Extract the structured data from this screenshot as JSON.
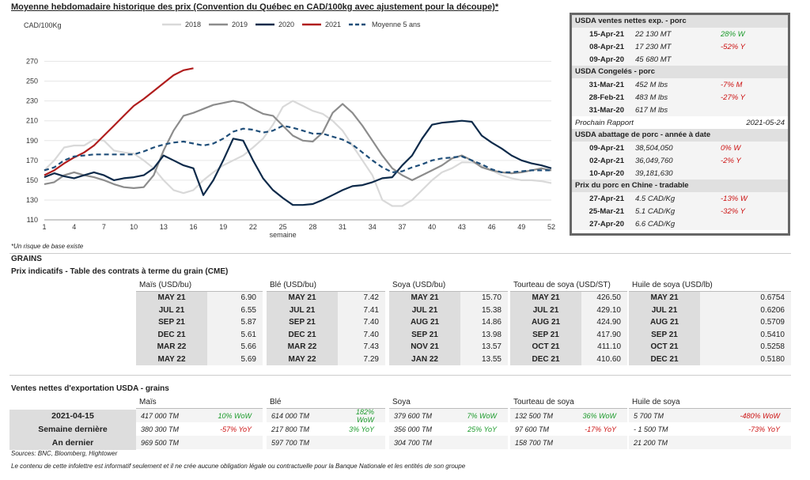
{
  "chart_data": {
    "type": "line",
    "title": "Moyenne hebdomadaire historique des prix (Convention du Québec en CAD/100kg avec ajustement pour la découpe)*",
    "ylabel": "CAD/100Kg",
    "xlabel": "semaine",
    "ylim": [
      110,
      280
    ],
    "yticks": [
      110,
      130,
      150,
      170,
      190,
      210,
      230,
      250,
      270
    ],
    "xticks": [
      1,
      4,
      7,
      10,
      13,
      16,
      19,
      22,
      25,
      28,
      31,
      34,
      37,
      40,
      43,
      46,
      49,
      52
    ],
    "xlim": [
      1,
      52
    ],
    "series": [
      {
        "name": "2018",
        "color": "#d9d9d9",
        "dash": "",
        "x": [
          1,
          2,
          3,
          4,
          5,
          6,
          7,
          8,
          9,
          10,
          11,
          12,
          13,
          14,
          15,
          16,
          17,
          18,
          19,
          20,
          21,
          22,
          23,
          24,
          25,
          26,
          27,
          28,
          29,
          30,
          31,
          32,
          33,
          34,
          35,
          36,
          37,
          38,
          39,
          40,
          41,
          42,
          43,
          44,
          45,
          46,
          47,
          48,
          49,
          50,
          51,
          52
        ],
        "values": [
          160,
          170,
          183,
          185,
          185,
          191,
          190,
          180,
          178,
          177,
          170,
          162,
          150,
          140,
          137,
          140,
          150,
          158,
          165,
          170,
          175,
          183,
          192,
          206,
          224,
          230,
          225,
          220,
          217,
          210,
          200,
          185,
          170,
          155,
          130,
          124,
          124,
          130,
          140,
          150,
          158,
          162,
          168,
          168,
          165,
          160,
          155,
          152,
          150,
          150,
          149,
          147
        ]
      },
      {
        "name": "2019",
        "color": "#8c8c8c",
        "dash": "",
        "x": [
          1,
          2,
          3,
          4,
          5,
          6,
          7,
          8,
          9,
          10,
          11,
          12,
          13,
          14,
          15,
          16,
          17,
          18,
          19,
          20,
          21,
          22,
          23,
          24,
          25,
          26,
          27,
          28,
          29,
          30,
          31,
          32,
          33,
          34,
          35,
          36,
          37,
          38,
          39,
          40,
          41,
          42,
          43,
          44,
          45,
          46,
          47,
          48,
          49,
          50,
          51,
          52
        ],
        "values": [
          146,
          148,
          155,
          158,
          155,
          153,
          150,
          146,
          143,
          142,
          143,
          155,
          180,
          200,
          215,
          218,
          222,
          226,
          228,
          230,
          228,
          222,
          217,
          215,
          205,
          195,
          190,
          189,
          198,
          218,
          227,
          218,
          205,
          190,
          175,
          162,
          155,
          150,
          155,
          160,
          165,
          172,
          175,
          170,
          163,
          160,
          158,
          157,
          158,
          160,
          162,
          160
        ]
      },
      {
        "name": "2020",
        "color": "#0d2a4a",
        "dash": "",
        "x": [
          1,
          2,
          3,
          4,
          5,
          6,
          7,
          8,
          9,
          10,
          11,
          12,
          13,
          14,
          15,
          16,
          17,
          18,
          19,
          20,
          21,
          22,
          23,
          24,
          25,
          26,
          27,
          28,
          29,
          30,
          31,
          32,
          33,
          34,
          35,
          36,
          37,
          38,
          39,
          40,
          41,
          42,
          43,
          44,
          45,
          46,
          47,
          48,
          49,
          50,
          51,
          52
        ],
        "values": [
          153,
          157,
          154,
          152,
          155,
          158,
          155,
          150,
          152,
          153,
          155,
          162,
          175,
          170,
          165,
          162,
          135,
          150,
          170,
          192,
          190,
          170,
          152,
          140,
          132,
          125,
          125,
          126,
          130,
          135,
          140,
          144,
          145,
          148,
          152,
          153,
          165,
          175,
          192,
          206,
          208,
          209,
          210,
          209,
          195,
          188,
          182,
          175,
          170,
          167,
          165,
          162
        ]
      },
      {
        "name": "2021",
        "color": "#b01d1d",
        "dash": "",
        "x": [
          1,
          2,
          3,
          4,
          5,
          6,
          7,
          8,
          9,
          10,
          11,
          12,
          13,
          14,
          15,
          16
        ],
        "values": [
          155,
          160,
          167,
          173,
          178,
          185,
          195,
          205,
          215,
          225,
          232,
          240,
          248,
          256,
          261,
          263
        ]
      },
      {
        "name": "Moyenne 5 ans",
        "color": "#1f4e79",
        "dash": "6,4",
        "x": [
          1,
          2,
          3,
          4,
          5,
          6,
          7,
          8,
          9,
          10,
          11,
          12,
          13,
          14,
          15,
          16,
          17,
          18,
          19,
          20,
          21,
          22,
          23,
          24,
          25,
          26,
          27,
          28,
          29,
          30,
          31,
          32,
          33,
          34,
          35,
          36,
          37,
          38,
          39,
          40,
          41,
          42,
          43,
          44,
          45,
          46,
          47,
          48,
          49,
          50,
          51,
          52
        ],
        "values": [
          160,
          163,
          170,
          174,
          175,
          176,
          176,
          176,
          176,
          176,
          179,
          183,
          186,
          188,
          189,
          187,
          185,
          187,
          192,
          199,
          202,
          201,
          198,
          200,
          205,
          203,
          200,
          197,
          197,
          194,
          191,
          186,
          178,
          170,
          163,
          158,
          159,
          163,
          166,
          170,
          172,
          173,
          174,
          170,
          166,
          161,
          158,
          158,
          159,
          160,
          160,
          160
        ]
      }
    ]
  },
  "chart_note": "*Un risque de base existe",
  "usda_box": {
    "sections": [
      {
        "title": "USDA ventes nettes exp. - porc",
        "rows": [
          {
            "date": "15-Apr-21",
            "value": "22 130  MT",
            "pct": "28% W",
            "sign": "pos"
          },
          {
            "date": "08-Apr-21",
            "value": "17 230  MT",
            "pct": "-52% Y",
            "sign": "neg"
          },
          {
            "date": "09-Apr-20",
            "value": "45 680  MT",
            "pct": "",
            "sign": ""
          }
        ]
      },
      {
        "title": "USDA Congelés - porc",
        "rows": [
          {
            "date": "31-Mar-21",
            "value": "452 M lbs",
            "pct": "-7% M",
            "sign": "neg"
          },
          {
            "date": "28-Feb-21",
            "value": "483 M lbs",
            "pct": "-27% Y",
            "sign": "neg"
          },
          {
            "date": "31-Mar-20",
            "value": "617 M lbs",
            "pct": "",
            "sign": ""
          }
        ]
      },
      {
        "title": "USDA abattage de porc - année à date",
        "rows": [
          {
            "date": "09-Apr-21",
            "value": "38,504,050",
            "pct": "0% W",
            "sign": "neg"
          },
          {
            "date": "02-Apr-21",
            "value": "36,049,760",
            "pct": "-2% Y",
            "sign": "neg"
          },
          {
            "date": "10-Apr-20",
            "value": "39,181,630",
            "pct": "",
            "sign": ""
          }
        ]
      },
      {
        "title": "Prix du porc en Chine - tradable",
        "rows": [
          {
            "date": "27-Apr-21",
            "value": "4.5 CAD/Kg",
            "pct": "-13% W",
            "sign": "neg"
          },
          {
            "date": "25-Mar-21",
            "value": "5.1 CAD/Kg",
            "pct": "-32% Y",
            "sign": "neg"
          },
          {
            "date": "27-Apr-20",
            "value": "6.6 CAD/Kg",
            "pct": "",
            "sign": ""
          }
        ]
      }
    ],
    "next_report_label": "Prochain Rapport",
    "next_report_date": "2021-05-24"
  },
  "grains_label": "GRAINS",
  "grains_subtitle": "Prix indicatifs - Table des contrats à terme du grain (CME)",
  "grain_table": [
    {
      "header": "Maïs (USD/bu)",
      "rows": [
        [
          "MAY 21",
          "6.90"
        ],
        [
          "JUL 21",
          "6.55"
        ],
        [
          "SEP 21",
          "5.87"
        ],
        [
          "DEC 21",
          "5.61"
        ],
        [
          "MAR 22",
          "5.66"
        ],
        [
          "MAY 22",
          "5.69"
        ]
      ]
    },
    {
      "header": "Blé (USD/bu)",
      "rows": [
        [
          "MAY 21",
          "7.42"
        ],
        [
          "JUL 21",
          "7.41"
        ],
        [
          "SEP 21",
          "7.40"
        ],
        [
          "DEC 21",
          "7.40"
        ],
        [
          "MAR 22",
          "7.43"
        ],
        [
          "MAY 22",
          "7.29"
        ]
      ]
    },
    {
      "header": "Soya (USD/bu)",
      "rows": [
        [
          "MAY 21",
          "15.70"
        ],
        [
          "JUL 21",
          "15.38"
        ],
        [
          "AUG 21",
          "14.86"
        ],
        [
          "SEP 21",
          "13.98"
        ],
        [
          "NOV 21",
          "13.57"
        ],
        [
          "JAN 22",
          "13.55"
        ]
      ]
    },
    {
      "header": "Tourteau de soya (USD/ST)",
      "rows": [
        [
          "MAY 21",
          "426.50"
        ],
        [
          "JUL 21",
          "429.10"
        ],
        [
          "AUG 21",
          "424.90"
        ],
        [
          "SEP 21",
          "417.90"
        ],
        [
          "OCT 21",
          "411.10"
        ],
        [
          "DEC 21",
          "410.60"
        ]
      ]
    },
    {
      "header": "Huile de soya (USD/lb)",
      "rows": [
        [
          "MAY 21",
          "0.6754"
        ],
        [
          "JUL 21",
          "0.6206"
        ],
        [
          "AUG 21",
          "0.5709"
        ],
        [
          "SEP 21",
          "0.5410"
        ],
        [
          "OCT 21",
          "0.5258"
        ],
        [
          "DEC 21",
          "0.5180"
        ]
      ]
    }
  ],
  "export_title": "Ventes nettes d'exportation USDA - grains",
  "export_row_labels": [
    "2021-04-15",
    "Semaine dernière",
    "An dernier"
  ],
  "export_table": [
    {
      "header": "Maïs",
      "rows": [
        [
          "417 000 TM",
          "10% WoW",
          "pos"
        ],
        [
          "380 300 TM",
          "-57% YoY",
          "neg"
        ],
        [
          "969 500 TM",
          "",
          ""
        ]
      ]
    },
    {
      "header": "Blé",
      "rows": [
        [
          "614 000 TM",
          "182% WoW",
          "pos"
        ],
        [
          "217 800 TM",
          "3% YoY",
          "pos"
        ],
        [
          "597 700 TM",
          "",
          ""
        ]
      ]
    },
    {
      "header": "Soya",
      "rows": [
        [
          "379 600 TM",
          "7% WoW",
          "pos"
        ],
        [
          "356 000 TM",
          "25% YoY",
          "pos"
        ],
        [
          "304 700 TM",
          "",
          ""
        ]
      ]
    },
    {
      "header": "Tourteau de soya",
      "rows": [
        [
          "132 500 TM",
          "36% WoW",
          "pos"
        ],
        [
          "97 600 TM",
          "-17% YoY",
          "neg"
        ],
        [
          "158 700 TM",
          "",
          ""
        ]
      ]
    },
    {
      "header": "Huile de soya",
      "rows": [
        [
          "5 700 TM",
          "-480% WoW",
          "neg"
        ],
        [
          "- 1 500 TM",
          "-73% YoY",
          "neg"
        ],
        [
          "21 200 TM",
          "",
          ""
        ]
      ]
    }
  ],
  "sources": "Sources: BNC, Bloomberg, Hightower",
  "disclaimer": "Le contenu de cette infolettre est informatif seulement et il ne crée aucune obligation légale ou contractuelle pour la Banque Nationale et les entités de son groupe"
}
